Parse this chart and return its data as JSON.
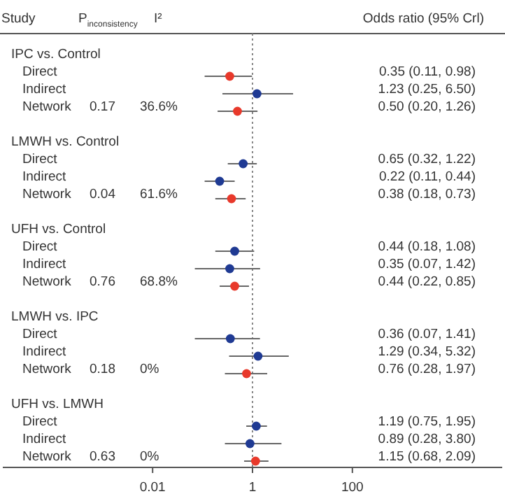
{
  "chart_data": {
    "type": "scatter",
    "orientation": "horizontal",
    "ylabel": "Study",
    "xlabel": "Odds ratio (95% Crl)",
    "categories": [
      "IPC vs. Control",
      "Direct",
      "Indirect",
      "Network",
      "LMWH vs. Control",
      "Direct",
      "Indirect",
      "Network",
      "UFH vs. Control",
      "Direct",
      "Indirect",
      "Network",
      "LMWH vs. IPC",
      "Direct",
      "Indirect",
      "Network",
      "UFH vs. LMWH",
      "Direct",
      "Indirect",
      "Network"
    ],
    "values": [
      null,
      0.35,
      1.23,
      0.5,
      null,
      0.65,
      0.22,
      0.38,
      null,
      0.44,
      0.35,
      0.44,
      null,
      0.36,
      1.29,
      0.76,
      null,
      1.19,
      0.89,
      1.15
    ],
    "errors": [
      null,
      [
        0.11,
        0.98
      ],
      [
        0.25,
        6.5
      ],
      [
        0.2,
        1.26
      ],
      null,
      [
        0.32,
        1.22
      ],
      [
        0.11,
        0.44
      ],
      [
        0.18,
        0.73
      ],
      null,
      [
        0.18,
        1.08
      ],
      [
        0.07,
        1.42
      ],
      [
        0.22,
        0.85
      ],
      null,
      [
        0.07,
        1.41
      ],
      [
        0.34,
        5.32
      ],
      [
        0.28,
        1.97
      ],
      null,
      [
        0.75,
        1.95
      ],
      [
        0.28,
        3.8
      ],
      [
        0.68,
        2.09
      ]
    ],
    "colors": [
      null,
      "#e8392b",
      "#1f3a93",
      "#e8392b",
      null,
      "#1f3a93",
      "#1f3a93",
      "#e8392b",
      null,
      "#1f3a93",
      "#1f3a93",
      "#e8392b",
      null,
      "#1f3a93",
      "#1f3a93",
      "#e8392b",
      null,
      "#1f3a93",
      "#1f3a93",
      "#e8392b"
    ],
    "annotations": [
      "P$_{inconsistency}$",
      "I²",
      "0.17",
      "36.6%",
      "0.04",
      "61.6%",
      "0.76",
      "68.8%",
      "0.18",
      "0%",
      "0.63",
      "0%",
      "0.35 (0.11, 0.98)",
      "1.23 (0.25, 6.50)",
      "0.50 (0.20, 1.26)",
      "0.65 (0.32, 1.22)",
      "0.22 (0.11, 0.44)",
      "0.38 (0.18, 0.73)",
      "0.44 (0.18, 1.08)",
      "0.35 (0.07, 1.42)",
      "0.44 (0.22, 0.85)",
      "0.36 (0.07, 1.41)",
      "1.29 (0.34, 5.32)",
      "0.76 (0.28, 1.97)",
      "1.19 (0.75, 1.95)",
      "0.89 (0.28, 3.80)",
      "1.15 (0.68, 2.09)"
    ],
    "log": "x",
    "xlim": [
      1e-05,
      100000
    ],
    "xticks": [
      0.01,
      1,
      100
    ],
    "marker": "circle",
    "ref_lines": [
      {
        "axis": "x",
        "value": 1,
        "color": "#888888",
        "line_style": "dotted"
      }
    ]
  }
}
